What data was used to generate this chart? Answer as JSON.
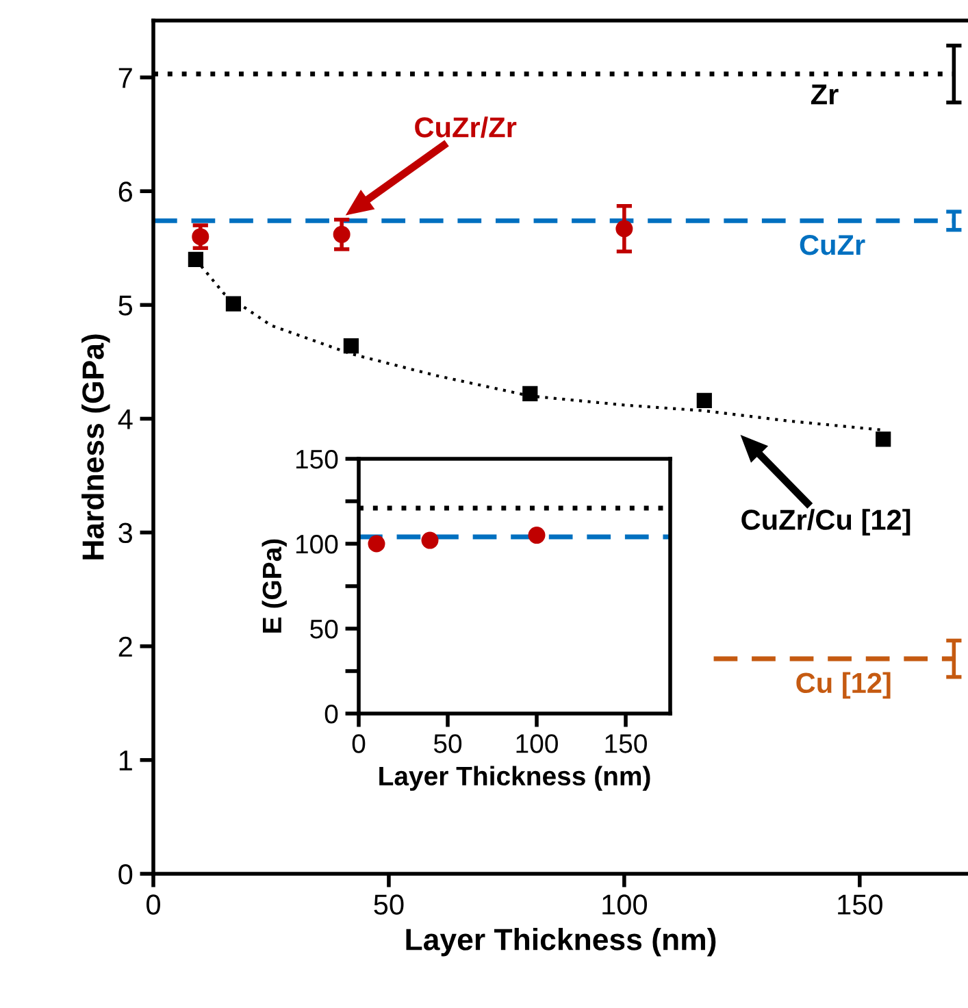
{
  "chart_data": [
    {
      "type": "scatter",
      "xlabel": "Layer Thickness (nm)",
      "ylabel": "Hardness (GPa)",
      "xlim": [
        0,
        173
      ],
      "ylim": [
        0,
        7.5
      ],
      "xticks": [
        0,
        50,
        100,
        150
      ],
      "yticks": [
        0,
        1,
        2,
        3,
        4,
        5,
        6,
        7
      ],
      "grid": false,
      "series": [
        {
          "name": "Zr",
          "type": "line",
          "color": "#000000",
          "line_style": "dotted",
          "marker": "none",
          "x": [
            0,
            170
          ],
          "values": [
            7.03,
            7.03
          ],
          "errors": [
            null,
            0.25
          ]
        },
        {
          "name": "CuZr",
          "type": "line",
          "color": "#0070c0",
          "line_style": "dashed",
          "marker": "none",
          "x": [
            0,
            170
          ],
          "values": [
            5.74,
            5.74
          ],
          "errors": [
            null,
            0.08
          ]
        },
        {
          "name": "Cu [12]",
          "type": "line",
          "color": "#c55a11",
          "line_style": "dashed",
          "marker": "none",
          "x": [
            119,
            170
          ],
          "values": [
            1.89,
            1.89
          ],
          "errors": [
            null,
            0.16
          ]
        },
        {
          "name": "CuZr/Zr",
          "color": "#c00000",
          "marker": "circle",
          "x": [
            10,
            40,
            100
          ],
          "values": [
            5.6,
            5.62,
            5.67
          ],
          "errors": [
            0.1,
            0.13,
            0.2
          ]
        },
        {
          "name": "CuZr/Cu [12]",
          "color": "#000000",
          "marker": "square",
          "x": [
            9,
            17,
            42,
            80,
            117,
            155
          ],
          "values": [
            5.4,
            5.01,
            4.64,
            4.22,
            4.16,
            3.82
          ]
        },
        {
          "type": "line",
          "color": "#000000",
          "line_style": "dotted",
          "marker": "none",
          "x": [
            9,
            15,
            25,
            42,
            60,
            80,
            100,
            117,
            135,
            155
          ],
          "values": [
            5.4,
            5.1,
            4.82,
            4.57,
            4.38,
            4.2,
            4.12,
            4.07,
            3.98,
            3.9
          ]
        }
      ]
    },
    {
      "type": "scatter",
      "xlabel": "Layer Thickness (nm)",
      "ylabel": "E (GPa)",
      "xlim": [
        0,
        175
      ],
      "ylim": [
        0,
        150
      ],
      "xticks": [
        0,
        50,
        100,
        150
      ],
      "yticks": [
        0,
        {
          "value": 25,
          "label": null
        },
        50,
        {
          "value": 75,
          "label": null
        },
        100,
        {
          "value": 125,
          "label": null
        },
        150
      ],
      "grid": false,
      "series": [
        {
          "color": "#c00000",
          "marker": "circle",
          "x": [
            10,
            40,
            100
          ],
          "values": [
            100,
            102,
            105
          ]
        }
      ],
      "ref_lines": [
        {
          "axis": "y",
          "value": 121,
          "color": "#000000",
          "line_style": "dotted"
        },
        {
          "axis": "y",
          "value": 104,
          "color": "#0070c0",
          "line_style": "dashed"
        }
      ]
    }
  ]
}
